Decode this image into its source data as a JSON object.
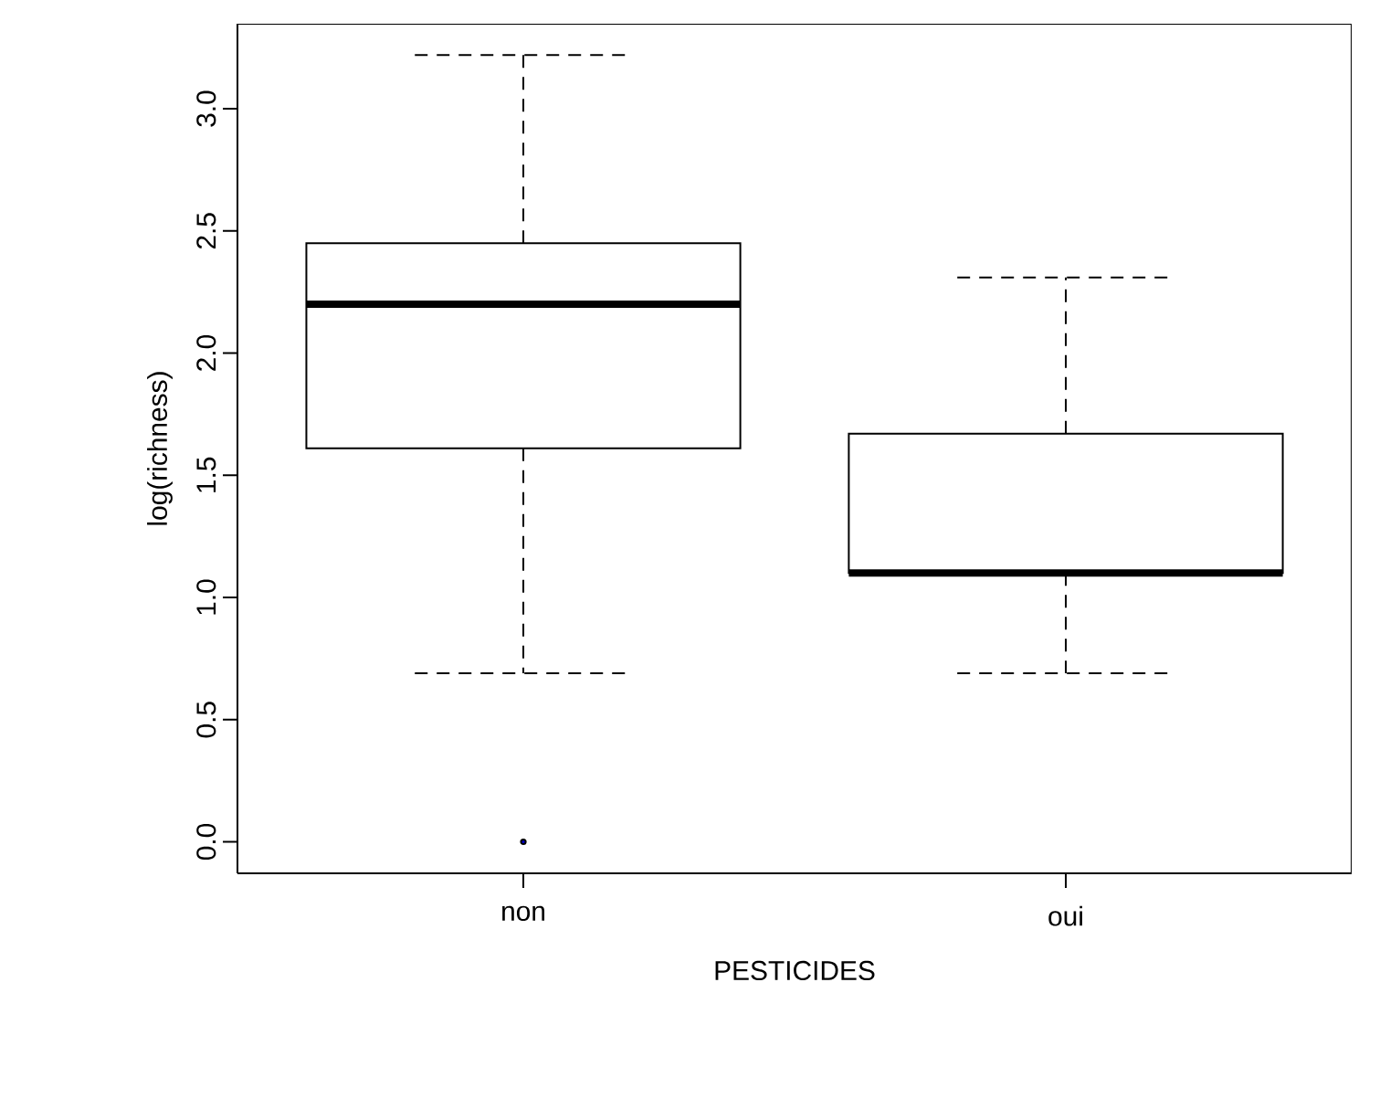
{
  "chart_data": {
    "type": "box",
    "xlabel": "PESTICIDES",
    "ylabel": "log(richness)",
    "categories": [
      "non",
      "oui"
    ],
    "boxes": [
      {
        "low": 0.69,
        "q1": 1.61,
        "median": 2.2,
        "q3": 2.45,
        "high": 3.22,
        "outliers": [
          0.0
        ]
      },
      {
        "low": 0.69,
        "q1": 1.1,
        "median": 1.1,
        "q3": 1.67,
        "high": 2.31
      }
    ],
    "ylim": [
      -0.129,
      3.348
    ],
    "yticks": [
      {
        "value": 0,
        "label": "0.0"
      },
      {
        "value": 0.5,
        "label": "0.5"
      },
      {
        "value": 1,
        "label": "1.0"
      },
      {
        "value": 1.5,
        "label": "1.5"
      },
      {
        "value": 2,
        "label": "2.0"
      },
      {
        "value": 2.5,
        "label": "2.5"
      },
      {
        "value": 3,
        "label": "3.0"
      }
    ]
  }
}
